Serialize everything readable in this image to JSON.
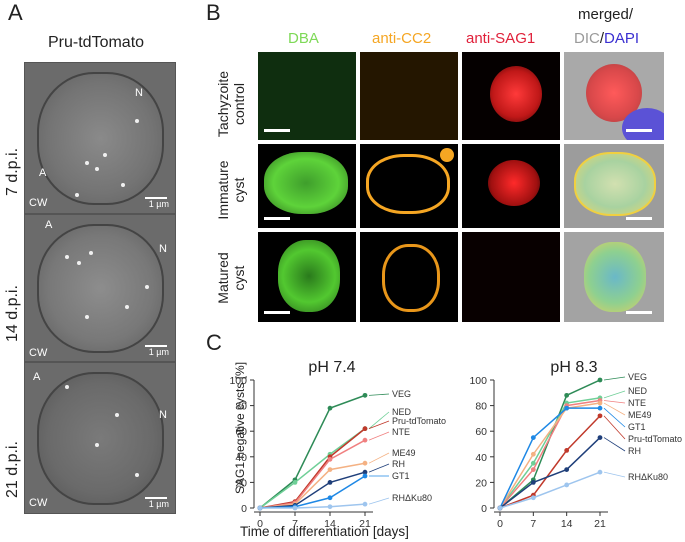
{
  "panelA": {
    "letter": "A",
    "title": "Pru-tdTomato",
    "rows": [
      {
        "label": "7 d.p.i.",
        "annotations": [
          "N",
          "A",
          "CW"
        ],
        "scale": "1 µm"
      },
      {
        "label": "14 d.p.i.",
        "annotations": [
          "A",
          "N",
          "CW"
        ],
        "scale": "1 µm"
      },
      {
        "label": "21 d.p.i.",
        "annotations": [
          "A",
          "N",
          "CW"
        ],
        "scale": "1 µm"
      }
    ]
  },
  "panelB": {
    "letter": "B",
    "columns": {
      "dba": "DBA",
      "cc2": "anti-CC2",
      "sag1": "anti-SAG1",
      "merged": "merged/",
      "dic": "DIC",
      "slash": "/",
      "dapi": "DAPI"
    },
    "rows": [
      {
        "line1": "Tachyzoite",
        "line2": "control"
      },
      {
        "line1": "Immature",
        "line2": "cyst"
      },
      {
        "line1": "Matured",
        "line2": "cyst"
      }
    ],
    "colors": {
      "dba": "#7ed957",
      "cc2": "#f5a623",
      "sag1": "#e0203a",
      "dic": "#9a9a9a",
      "dapi": "#3a2fd1"
    }
  },
  "panelC": {
    "letter": "C",
    "ylabel": "SAG1 negative cysts [%]",
    "xlabel": "Time of differentiation [days]"
  },
  "chart_data": [
    {
      "type": "line",
      "title": "pH 7.4",
      "xlabel": "Time of differentiation [days]",
      "ylabel": "SAG1 negative cysts [%]",
      "x": [
        0,
        7,
        14,
        21
      ],
      "xlim": [
        0,
        21
      ],
      "ylim": [
        0,
        100
      ],
      "yticks": [
        0,
        20,
        40,
        60,
        80,
        100
      ],
      "series": [
        {
          "name": "VEG",
          "color": "#2e8b57",
          "values": [
            0,
            22,
            78,
            88
          ]
        },
        {
          "name": "NED",
          "color": "#6fcf97",
          "values": [
            0,
            20,
            42,
            62
          ]
        },
        {
          "name": "Pru-tdTomato",
          "color": "#c0392b",
          "values": [
            0,
            5,
            40,
            62
          ]
        },
        {
          "name": "NTE",
          "color": "#f08080",
          "values": [
            0,
            4,
            38,
            53
          ]
        },
        {
          "name": "ME49",
          "color": "#f4b183",
          "values": [
            0,
            3,
            30,
            35
          ]
        },
        {
          "name": "RH",
          "color": "#1f3f7a",
          "values": [
            0,
            2,
            20,
            28
          ]
        },
        {
          "name": "GT1",
          "color": "#1e88e5",
          "values": [
            0,
            1,
            8,
            25
          ]
        },
        {
          "name": "RHΔKu80",
          "color": "#9ec5ee",
          "values": [
            0,
            0,
            1,
            3
          ]
        }
      ]
    },
    {
      "type": "line",
      "title": "pH 8.3",
      "xlabel": "Time of differentiation [days]",
      "x": [
        0,
        7,
        14,
        21
      ],
      "xlim": [
        0,
        21
      ],
      "ylim": [
        0,
        100
      ],
      "yticks": [
        0,
        20,
        40,
        60,
        80,
        100
      ],
      "series": [
        {
          "name": "VEG",
          "color": "#2e8b57",
          "values": [
            0,
            22,
            88,
            100
          ]
        },
        {
          "name": "NED",
          "color": "#6fcf97",
          "values": [
            0,
            35,
            82,
            86
          ]
        },
        {
          "name": "NTE",
          "color": "#f08080",
          "values": [
            0,
            30,
            80,
            84
          ]
        },
        {
          "name": "ME49",
          "color": "#f4b183",
          "values": [
            0,
            42,
            78,
            82
          ]
        },
        {
          "name": "GT1",
          "color": "#1e88e5",
          "values": [
            0,
            55,
            78,
            78
          ]
        },
        {
          "name": "Pru-tdTomato",
          "color": "#c0392b",
          "values": [
            0,
            10,
            45,
            72
          ]
        },
        {
          "name": "RH",
          "color": "#1f3f7a",
          "values": [
            0,
            20,
            30,
            55
          ]
        },
        {
          "name": "RHΔKu80",
          "color": "#9ec5ee",
          "values": [
            0,
            8,
            18,
            28
          ]
        }
      ]
    }
  ]
}
